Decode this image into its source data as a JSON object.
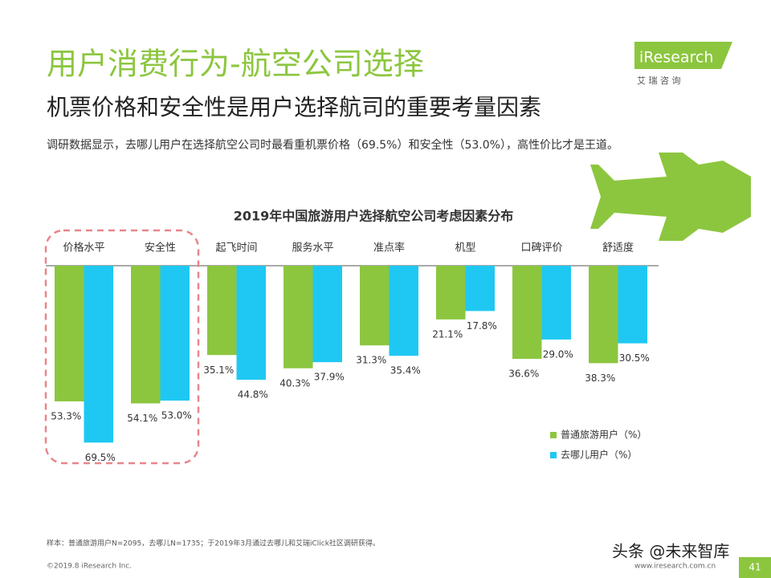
{
  "header": {
    "title": "用户消费行为-航空公司选择",
    "subtitle": "机票价格和安全性是用户选择航司的重要考量因素",
    "description": "调研数据显示，去哪儿用户在选择航空公司时最看重机票价格（69.5%）和安全性（53.0%），高性价比才是王道。"
  },
  "logo": {
    "name": "iResearch",
    "tagline": "艾 瑞 咨 询"
  },
  "chart_data": {
    "type": "bar",
    "title": "2019年中国旅游用户选择航空公司考虑因素分布",
    "categories": [
      "价格水平",
      "安全性",
      "起飞时间",
      "服务水平",
      "准点率",
      "机型",
      "口碑评价",
      "舒适度"
    ],
    "series": [
      {
        "name": "普通旅游用户（%）",
        "color": "#8cc63f",
        "values": [
          53.3,
          54.1,
          35.1,
          40.3,
          31.3,
          21.1,
          36.6,
          38.3
        ],
        "value_labels": [
          "53.3%",
          "54.1%",
          "35.1%",
          "40.3%",
          "31.3%",
          "21.1%",
          "36.6%",
          "38.3%"
        ]
      },
      {
        "name": "去哪儿用户（%）",
        "color": "#1fc8f2",
        "values": [
          69.5,
          53.0,
          44.8,
          37.9,
          35.4,
          17.8,
          29.0,
          30.5
        ],
        "value_labels": [
          "69.5%",
          "53.0%",
          "44.8%",
          "37.9%",
          "35.4%",
          "17.8%",
          "29.0%",
          "30.5%"
        ]
      }
    ]
  },
  "footer": {
    "note": "样本：普通旅游用户N=2095，去哪儿N=1735；于2019年3月通过去哪儿和艾瑞iClick社区调研获得。",
    "copyright": "©2019.8 iResearch Inc.",
    "website": "www.iresearch.com.cn",
    "page": "41"
  },
  "watermark": "头条 @未来智库"
}
